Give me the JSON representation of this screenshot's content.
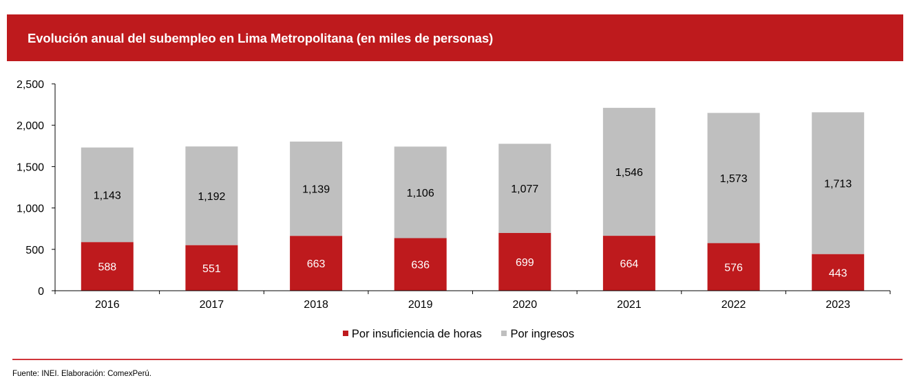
{
  "header": {
    "title": "Evolución anual del subempleo en Lima Metropolitana (en miles de personas)"
  },
  "colors": {
    "header_bg": "#be1a1d",
    "series_hours": "#be1a1d",
    "series_income": "#bfbfbf",
    "divider": "#d0343a"
  },
  "chart_data": {
    "type": "bar",
    "stacked": true,
    "title": "Evolución anual del subempleo en Lima Metropolitana (en miles de personas)",
    "xlabel": "",
    "ylabel": "",
    "ylim": [
      0,
      2500
    ],
    "yticks": [
      0,
      500,
      1000,
      1500,
      2000,
      2500
    ],
    "ytick_labels": [
      "0",
      "500",
      "1,000",
      "1,500",
      "2,000",
      "2,500"
    ],
    "grid": false,
    "categories": [
      "2016",
      "2017",
      "2018",
      "2019",
      "2020",
      "2021",
      "2022",
      "2023"
    ],
    "series": [
      {
        "name": "Por insuficiencia de horas",
        "color": "#be1a1d",
        "label_color": "#ffffff",
        "values": [
          588,
          551,
          663,
          636,
          699,
          664,
          576,
          443
        ],
        "labels": [
          "588",
          "551",
          "663",
          "636",
          "699",
          "664",
          "576",
          "443"
        ]
      },
      {
        "name": "Por ingresos",
        "color": "#bfbfbf",
        "label_color": "#000000",
        "values": [
          1143,
          1192,
          1139,
          1106,
          1077,
          1546,
          1573,
          1713
        ],
        "labels": [
          "1,143",
          "1,192",
          "1,139",
          "1,106",
          "1,077",
          "1,546",
          "1,573",
          "1,713"
        ]
      }
    ],
    "legend": {
      "position": "bottom-center",
      "entries": [
        "Por insuficiencia de horas",
        "Por ingresos"
      ]
    }
  },
  "footer": {
    "source": "Fuente: INEI. Elaboración: ComexPerú."
  }
}
